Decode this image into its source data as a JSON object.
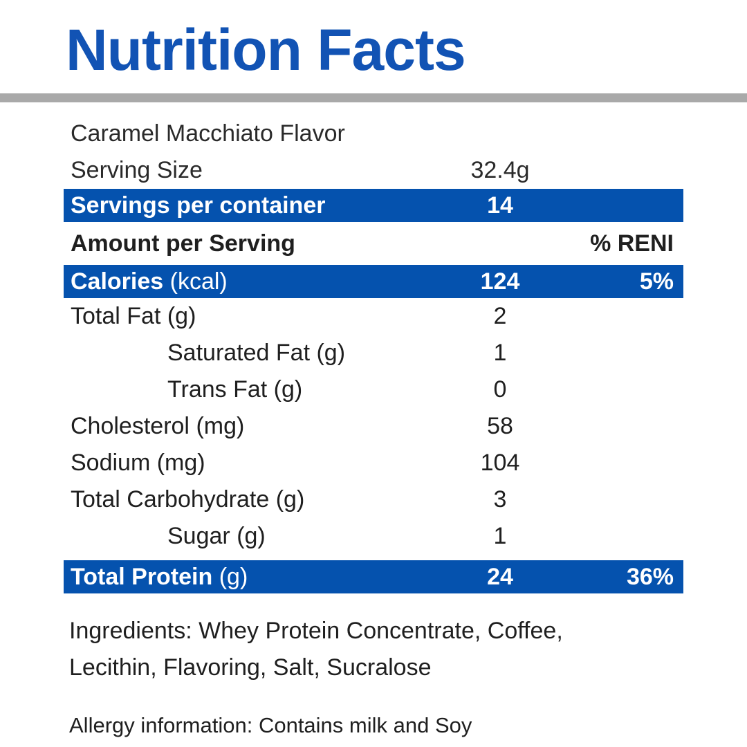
{
  "title": "Nutrition Facts",
  "colors": {
    "title_blue": "#1253B4",
    "band_blue": "#0552AE",
    "divider_gray": "#A9A9A9",
    "text_dark": "#1F1F1F",
    "band_text": "#FFFFFF"
  },
  "header": {
    "flavor": "Caramel Macchiato Flavor",
    "serving_size_label": "Serving Size",
    "serving_size_value": "32.4g",
    "servings_label": "Servings per container",
    "servings_value": "14",
    "amount_label": "Amount per Serving",
    "percent_label": "% RENI"
  },
  "nutrients": [
    {
      "label": "Calories",
      "unit": "(kcal)",
      "value": "124",
      "percent": "5%"
    },
    {
      "label": "Total Fat",
      "unit": "(g)",
      "value": "2",
      "percent": ""
    },
    {
      "label": "Saturated Fat",
      "unit": "(g)",
      "value": "1",
      "percent": ""
    },
    {
      "label": "Trans Fat",
      "unit": "(g)",
      "value": "0",
      "percent": ""
    },
    {
      "label": "Cholesterol",
      "unit": "(mg)",
      "value": "58",
      "percent": ""
    },
    {
      "label": "Sodium",
      "unit": "(mg)",
      "value": "104",
      "percent": ""
    },
    {
      "label": "Total Carbohydrate",
      "unit": "(g)",
      "value": "3",
      "percent": ""
    },
    {
      "label": "Sugar",
      "unit": "(g)",
      "value": "1",
      "percent": ""
    },
    {
      "label": "Total Protein",
      "unit": "(g)",
      "value": "24",
      "percent": "36%"
    }
  ],
  "footer": {
    "ingredients": "Ingredients: Whey Protein Concentrate, Coffee, Lecithin, Flavoring, Salt, Sucralose",
    "allergy": "Allergy information: Contains milk and Soy"
  }
}
